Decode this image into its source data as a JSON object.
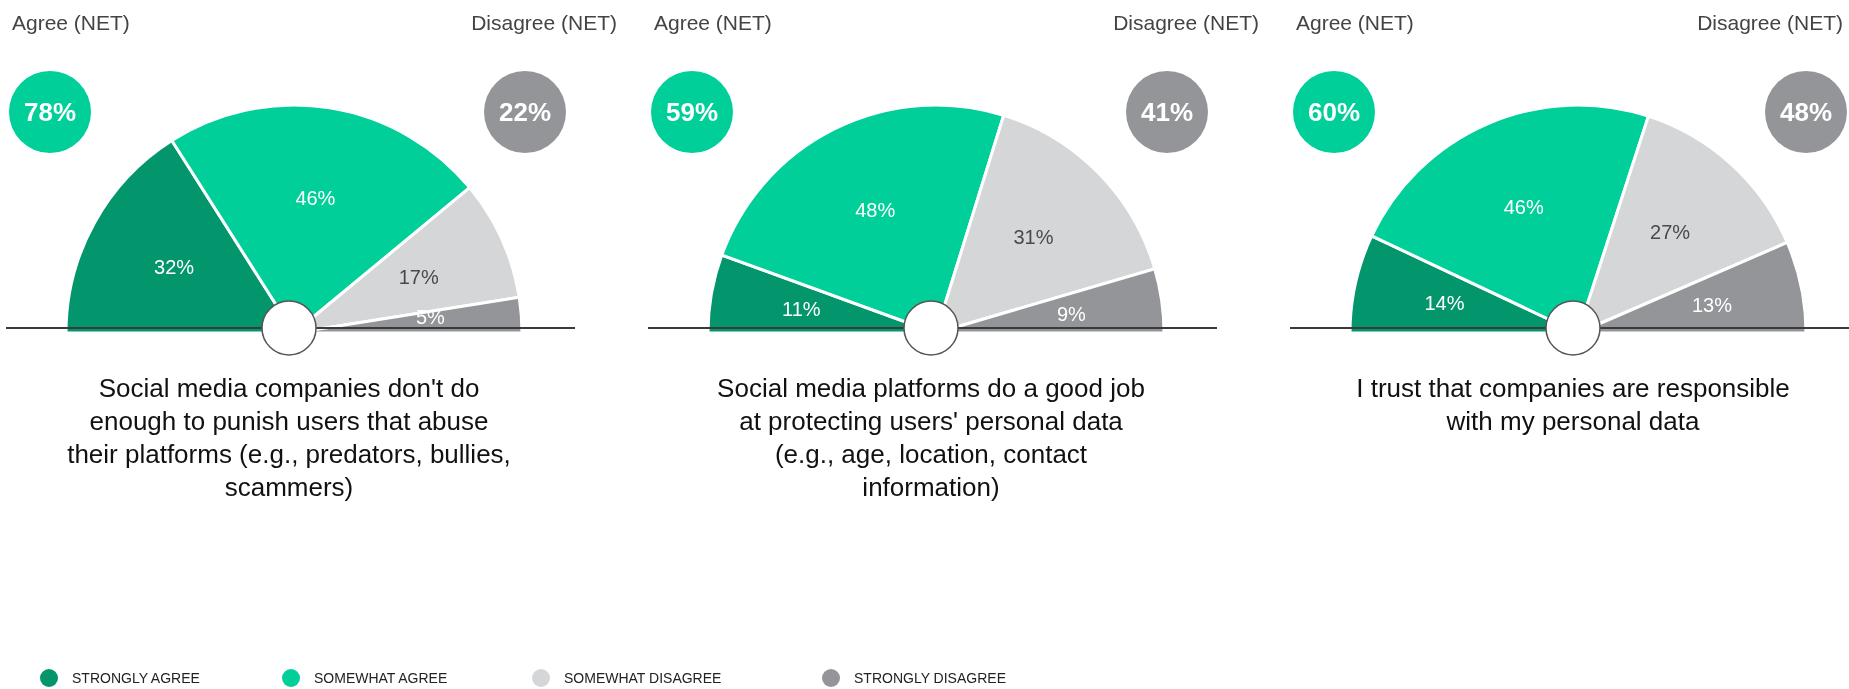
{
  "chart_data": [
    {
      "type": "pie",
      "title": "Social media companies don't do enough to punish users that abuse their platforms (e.g., predators, bullies, scammers)",
      "categories": [
        "STRONGLY AGREE",
        "SOMEWHAT AGREE",
        "SOMEWHAT DISAGREE",
        "STRONGLY DISAGREE"
      ],
      "values": [
        32,
        46,
        17,
        5
      ],
      "value_labels": [
        "32%",
        "46%",
        "17%",
        "5%"
      ],
      "colors": [
        "#03966d",
        "#00cf9a",
        "#d5d6d8",
        "#939598"
      ],
      "annotations": [
        "Agree (NET)",
        "Disagree (NET)",
        "78%",
        "22%"
      ],
      "legend": "bottom"
    },
    {
      "type": "pie",
      "title": "Social media platforms do a good job at protecting users' personal data (e.g., age, location, contact information)",
      "categories": [
        null,
        null,
        null,
        null
      ],
      "values": [
        11,
        48,
        31,
        9
      ],
      "value_labels": [
        "11%",
        "48%",
        "31%",
        "9%"
      ],
      "colors": [
        "#03966d",
        "#00cf9a",
        "#d5d6d8",
        "#939598"
      ],
      "annotations": [
        "Agree (NET)",
        "Disagree (NET)",
        "59%",
        "41%"
      ]
    },
    {
      "type": "pie",
      "title": "I trust that companies are responsible with my personal data",
      "categories": [
        null,
        null,
        null,
        null
      ],
      "values": [
        14,
        46,
        27,
        13
      ],
      "value_labels": [
        "14%",
        "46%",
        "27%",
        "13%"
      ],
      "colors": [
        "#03966d",
        "#00cf9a",
        "#d5d6d8",
        "#939598"
      ],
      "annotations": [
        "Agree (NET)",
        "Disagree (NET)",
        "60%",
        "48%"
      ]
    }
  ]
}
